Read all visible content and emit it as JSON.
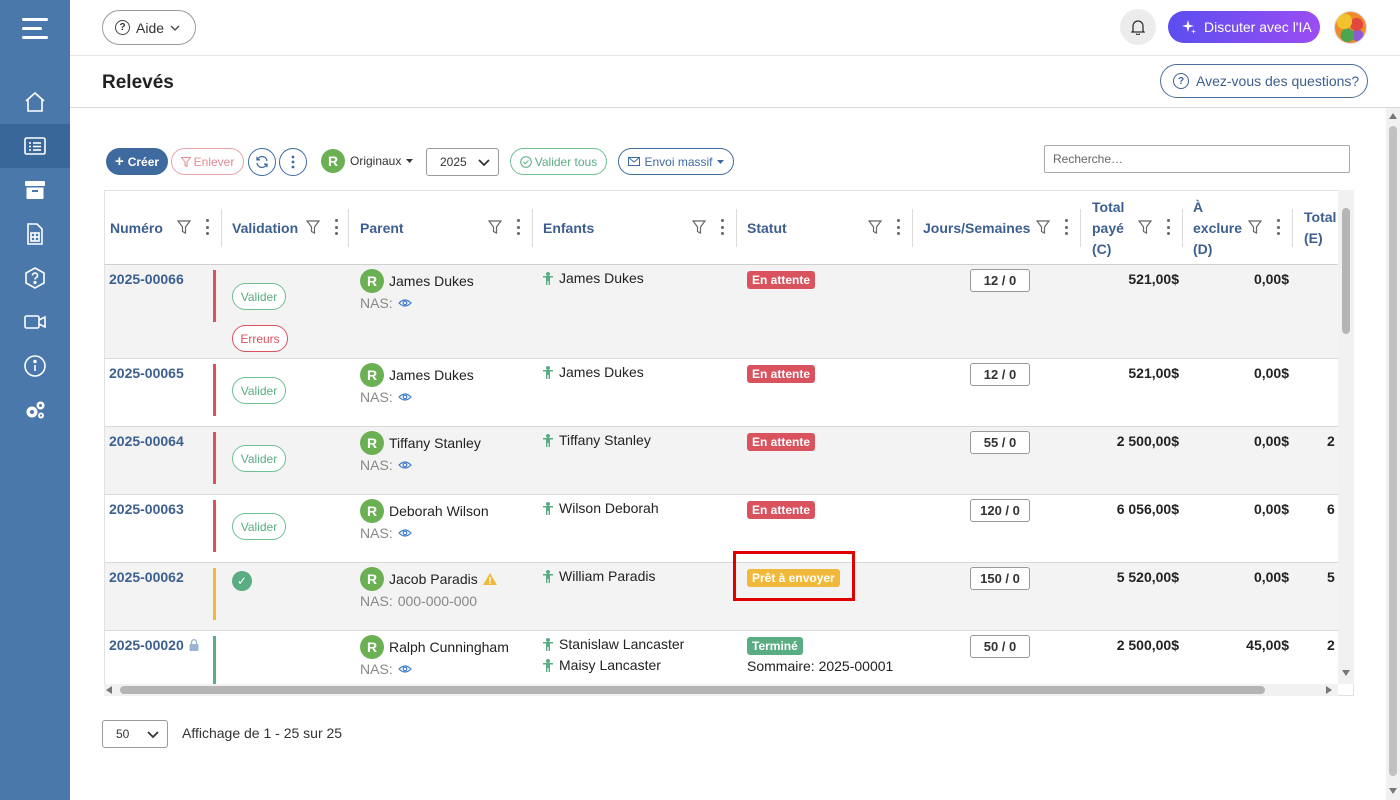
{
  "topbar": {
    "help_label": "Aide",
    "ai_label": "Discuter avec l'IA"
  },
  "header": {
    "title": "Relevés",
    "questions_label": "Avez-vous des questions?"
  },
  "toolbar": {
    "create_label": "Créer",
    "remove_label": "Enlever",
    "originals_badge": "R",
    "originals_label": "Originaux",
    "year_value": "2025",
    "validate_all_label": "Valider tous",
    "mass_send_label": "Envoi massif",
    "search_placeholder": "Recherche…"
  },
  "columns": {
    "numero": "Numéro",
    "validation": "Validation",
    "parent": "Parent",
    "enfants": "Enfants",
    "statut": "Statut",
    "jours": "Jours/Semaines",
    "total_paye_1": "Total",
    "total_paye_2": "payé",
    "total_paye_3": "(C)",
    "exclure_1": "À",
    "exclure_2": "exclure",
    "exclure_3": "(D)",
    "total_e_1": "Total",
    "total_e_2": "(E)"
  },
  "labels": {
    "valider": "Valider",
    "erreurs": "Erreurs",
    "nas": "NAS:",
    "r_badge": "R"
  },
  "rows": [
    {
      "numero": "2025-00066",
      "parent": "James Dukes",
      "child1": "James Dukes",
      "status": "En attente",
      "days": "12 / 0",
      "paid": "521,00$",
      "excl": "0,00$",
      "total": ""
    },
    {
      "numero": "2025-00065",
      "parent": "James Dukes",
      "child1": "James Dukes",
      "status": "En attente",
      "days": "12 / 0",
      "paid": "521,00$",
      "excl": "0,00$",
      "total": ""
    },
    {
      "numero": "2025-00064",
      "parent": "Tiffany Stanley",
      "child1": "Tiffany Stanley",
      "status": "En attente",
      "days": "55 / 0",
      "paid": "2 500,00$",
      "excl": "0,00$",
      "total": "2"
    },
    {
      "numero": "2025-00063",
      "parent": "Deborah Wilson",
      "child1": "Wilson Deborah",
      "status": "En attente",
      "days": "120 / 0",
      "paid": "6 056,00$",
      "excl": "0,00$",
      "total": "6"
    },
    {
      "numero": "2025-00062",
      "parent": "Jacob Paradis",
      "nas_value": "000-000-000",
      "child1": "William Paradis",
      "status": "Prêt à envoyer",
      "days": "150 / 0",
      "paid": "5 520,00$",
      "excl": "0,00$",
      "total": "5"
    },
    {
      "numero": "2025-00020",
      "parent": "Ralph Cunningham",
      "child1": "Stanislaw Lancaster",
      "child2": "Maisy Lancaster",
      "status": "Terminé",
      "summary": "Sommaire: 2025-00001",
      "days": "50 / 0",
      "paid": "2 500,00$",
      "excl": "45,00$",
      "total": "2"
    }
  ],
  "footer": {
    "per_page": "50",
    "paging_text": "Affichage de 1 - 25 sur 25"
  },
  "colors": {
    "sidebar": "#4a78ab",
    "accent": "#3d5f8f",
    "pending": "#d9535f",
    "ready": "#f0b93b",
    "done": "#5aad82",
    "highlight": "#e00000"
  }
}
